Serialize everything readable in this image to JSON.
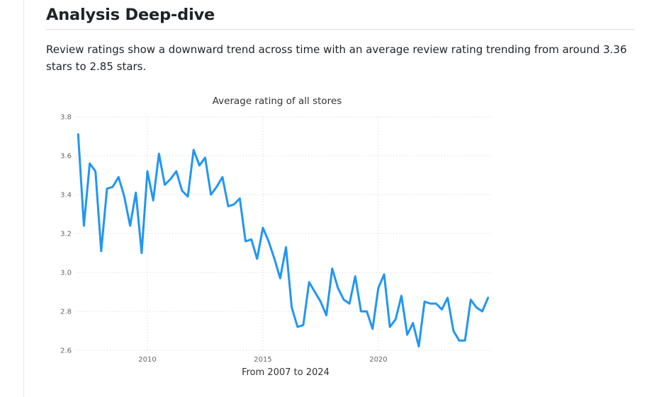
{
  "section": {
    "heading": "Analysis Deep-dive",
    "description": "Review ratings show a downward trend across time with an average review rating trending from around 3.36 stars to 2.85 stars."
  },
  "chart_data": {
    "type": "line",
    "title": "Average rating of all stores",
    "xlabel": "From 2007 to 2024",
    "ylabel": "",
    "series_color": "#2196f3",
    "grid": true,
    "xlim": [
      2006.9,
      2024.85
    ],
    "ylim": [
      2.6,
      3.8
    ],
    "x_ticks": [
      2010,
      2015,
      2020
    ],
    "x_tick_labels": [
      "2010",
      "2015",
      "2020"
    ],
    "y_ticks": [
      2.6,
      2.8,
      3.0,
      3.2,
      3.4,
      3.6,
      3.8
    ],
    "y_tick_labels": [
      "2.6",
      "2.8",
      "3.0",
      "3.2",
      "3.4",
      "3.6",
      "3.8"
    ],
    "series": [
      {
        "name": "Average rating",
        "x": [
          2007.0,
          2007.25,
          2007.5,
          2007.75,
          2008.0,
          2008.25,
          2008.5,
          2008.75,
          2009.0,
          2009.25,
          2009.5,
          2009.75,
          2010.0,
          2010.25,
          2010.5,
          2010.75,
          2011.0,
          2011.25,
          2011.5,
          2011.75,
          2012.0,
          2012.25,
          2012.5,
          2012.75,
          2013.0,
          2013.25,
          2013.5,
          2013.75,
          2014.0,
          2014.25,
          2014.5,
          2014.75,
          2015.0,
          2015.25,
          2015.5,
          2015.75,
          2016.0,
          2016.25,
          2016.5,
          2016.75,
          2017.0,
          2017.25,
          2017.5,
          2017.75,
          2018.0,
          2018.25,
          2018.5,
          2018.75,
          2019.0,
          2019.25,
          2019.5,
          2019.75,
          2020.0,
          2020.25,
          2020.5,
          2020.75,
          2021.0,
          2021.25,
          2021.5,
          2021.75,
          2022.0,
          2022.25,
          2022.5,
          2022.75,
          2023.0,
          2023.25,
          2023.5,
          2023.75,
          2024.0,
          2024.25,
          2024.5,
          2024.75
        ],
        "values": [
          3.71,
          3.24,
          3.56,
          3.52,
          3.11,
          3.43,
          3.44,
          3.49,
          3.39,
          3.24,
          3.41,
          3.1,
          3.52,
          3.37,
          3.61,
          3.45,
          3.48,
          3.52,
          3.42,
          3.39,
          3.63,
          3.55,
          3.59,
          3.4,
          3.44,
          3.49,
          3.34,
          3.35,
          3.38,
          3.16,
          3.17,
          3.07,
          3.23,
          3.16,
          3.07,
          2.97,
          3.13,
          2.82,
          2.72,
          2.73,
          2.95,
          2.9,
          2.85,
          2.78,
          3.02,
          2.92,
          2.86,
          2.84,
          2.98,
          2.8,
          2.8,
          2.71,
          2.92,
          2.99,
          2.72,
          2.76,
          2.88,
          2.68,
          2.74,
          2.62,
          2.85,
          2.84,
          2.84,
          2.81,
          2.87,
          2.7,
          2.65,
          2.65,
          2.86,
          2.82,
          2.8,
          2.87
        ]
      }
    ]
  }
}
